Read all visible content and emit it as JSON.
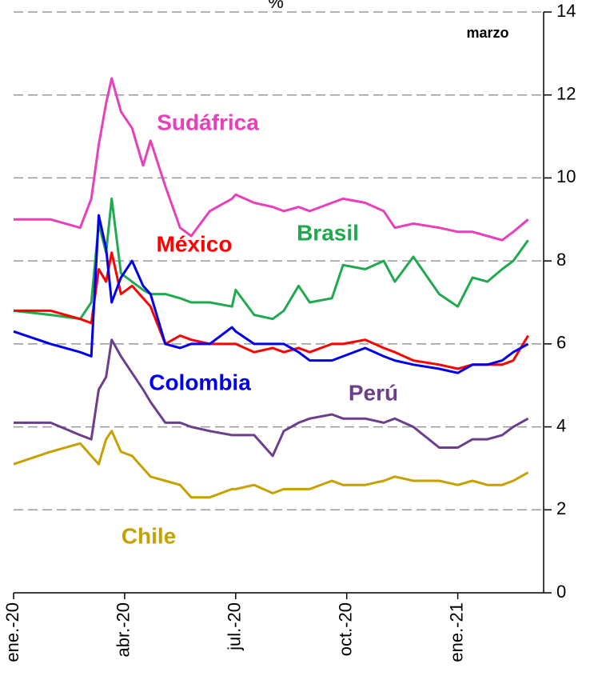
{
  "chart_data": {
    "type": "line",
    "title": "%",
    "annotation": "marzo",
    "x": [
      0,
      1,
      1.8,
      2.1,
      2.3,
      2.5,
      2.65,
      2.9,
      3.2,
      3.5,
      3.7,
      4.1,
      4.5,
      4.8,
      5.3,
      5.9,
      6.0,
      6.5,
      7.0,
      7.3,
      7.7,
      8.0,
      8.6,
      8.9,
      9.5,
      10.0,
      10.3,
      10.8,
      11.5,
      12.0,
      12.4,
      12.8,
      13.2,
      13.5,
      13.9
    ],
    "xlim": [
      0,
      14.32
    ],
    "xticks": [
      {
        "value": 0,
        "label": "ene.-20"
      },
      {
        "value": 3,
        "label": "abr.-20"
      },
      {
        "value": 6,
        "label": "jul.-20"
      },
      {
        "value": 9,
        "label": "oct.-20"
      },
      {
        "value": 12,
        "label": "ene.-21"
      }
    ],
    "ylim": [
      0,
      14
    ],
    "yticks": [
      0,
      2,
      4,
      6,
      8,
      10,
      12,
      14
    ],
    "grid": true,
    "series": [
      {
        "name": "Sudáfrica",
        "color": "#e83fba",
        "values": [
          9.0,
          9.0,
          8.8,
          9.5,
          10.8,
          11.8,
          12.4,
          11.6,
          11.2,
          10.3,
          10.9,
          9.8,
          8.8,
          8.6,
          9.2,
          9.5,
          9.6,
          9.4,
          9.3,
          9.2,
          9.3,
          9.2,
          9.4,
          9.5,
          9.4,
          9.2,
          8.8,
          8.9,
          8.8,
          8.7,
          8.7,
          8.6,
          8.5,
          8.7,
          9.0
        ]
      },
      {
        "name": "Brasil",
        "color": "#1faa50",
        "values": [
          6.8,
          6.7,
          6.6,
          7.0,
          8.9,
          8.2,
          9.5,
          7.7,
          7.5,
          7.3,
          7.2,
          7.2,
          7.1,
          7.0,
          7.0,
          6.9,
          7.3,
          6.7,
          6.6,
          6.8,
          7.4,
          7.0,
          7.1,
          7.9,
          7.8,
          8.0,
          7.5,
          8.1,
          7.2,
          6.9,
          7.6,
          7.5,
          7.8,
          8.0,
          8.5
        ]
      },
      {
        "name": "México",
        "color": "#ff0000",
        "values": [
          6.8,
          6.8,
          6.6,
          6.5,
          7.8,
          7.5,
          8.2,
          7.2,
          7.4,
          7.1,
          6.9,
          6.0,
          6.2,
          6.1,
          6.0,
          6.0,
          6.0,
          5.8,
          5.9,
          5.8,
          5.9,
          5.8,
          6.0,
          6.0,
          6.1,
          5.9,
          5.8,
          5.6,
          5.5,
          5.4,
          5.5,
          5.5,
          5.5,
          5.6,
          6.2
        ]
      },
      {
        "name": "Colombia",
        "color": "#0000ee",
        "values": [
          6.3,
          6.0,
          5.8,
          5.7,
          9.1,
          8.3,
          7.0,
          7.6,
          8.0,
          7.4,
          7.2,
          6.0,
          5.9,
          6.0,
          6.0,
          6.4,
          6.3,
          6.0,
          6.0,
          6.0,
          5.8,
          5.6,
          5.6,
          5.7,
          5.9,
          5.7,
          5.6,
          5.5,
          5.4,
          5.3,
          5.5,
          5.5,
          5.6,
          5.8,
          6.0
        ]
      },
      {
        "name": "Perú",
        "color": "#6b3f8c",
        "values": [
          4.1,
          4.1,
          3.8,
          3.7,
          4.9,
          5.2,
          6.1,
          5.7,
          5.3,
          4.9,
          4.6,
          4.1,
          4.1,
          4.0,
          3.9,
          3.8,
          3.8,
          3.8,
          3.3,
          3.9,
          4.1,
          4.2,
          4.3,
          4.2,
          4.2,
          4.1,
          4.2,
          4.0,
          3.5,
          3.5,
          3.7,
          3.7,
          3.8,
          4.0,
          4.2
        ]
      },
      {
        "name": "Chile",
        "color": "#c8a000",
        "values": [
          3.1,
          3.4,
          3.6,
          3.3,
          3.1,
          3.7,
          3.9,
          3.4,
          3.3,
          3.0,
          2.8,
          2.7,
          2.6,
          2.3,
          2.3,
          2.5,
          2.5,
          2.6,
          2.4,
          2.5,
          2.5,
          2.5,
          2.7,
          2.6,
          2.6,
          2.7,
          2.8,
          2.7,
          2.7,
          2.6,
          2.7,
          2.6,
          2.6,
          2.7,
          2.9
        ]
      }
    ]
  }
}
